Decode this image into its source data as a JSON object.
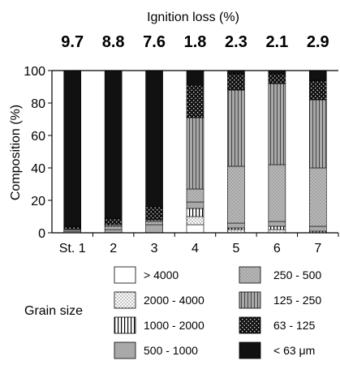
{
  "chart_data": {
    "type": "bar",
    "stacked": true,
    "percent_stacked": true,
    "title": "Ignition loss (%)",
    "top_values": [
      "9.7",
      "8.8",
      "7.6",
      "1.8",
      "2.3",
      "2.1",
      "2.9"
    ],
    "categories": [
      "St. 1",
      "2",
      "3",
      "4",
      "5",
      "6",
      "7"
    ],
    "ylabel": "Composition (%)",
    "ylim": [
      0,
      100
    ],
    "yticks": [
      0,
      20,
      40,
      60,
      80,
      100
    ],
    "legend_title": "Grain size",
    "series": [
      {
        "name": "> 4000",
        "pattern": "white",
        "values": [
          0,
          0,
          0,
          5,
          0,
          0,
          0
        ]
      },
      {
        "name": "2000 - 4000",
        "pattern": "fine-dots",
        "values": [
          0,
          0,
          0,
          5,
          2,
          2,
          0
        ]
      },
      {
        "name": "1000 - 2000",
        "pattern": "vlines",
        "values": [
          0,
          0,
          0,
          5,
          1,
          2,
          1
        ]
      },
      {
        "name": "500 - 1000",
        "pattern": "gray",
        "values": [
          1,
          2,
          5,
          4,
          3,
          3,
          3
        ]
      },
      {
        "name": "250 - 500",
        "pattern": "gray-dots",
        "values": [
          1,
          2,
          2,
          8,
          35,
          35,
          36
        ]
      },
      {
        "name": "125 - 250",
        "pattern": "gray-vlines",
        "values": [
          0,
          1,
          1,
          44,
          47,
          50,
          42
        ]
      },
      {
        "name": "63 - 125",
        "pattern": "black-dots",
        "values": [
          2,
          4,
          8,
          20,
          10,
          6,
          12
        ]
      },
      {
        "name": "< 63 μm",
        "pattern": "black",
        "values": [
          96,
          91,
          84,
          9,
          2,
          2,
          6
        ]
      }
    ],
    "grid": false,
    "legend_position": "bottom"
  }
}
